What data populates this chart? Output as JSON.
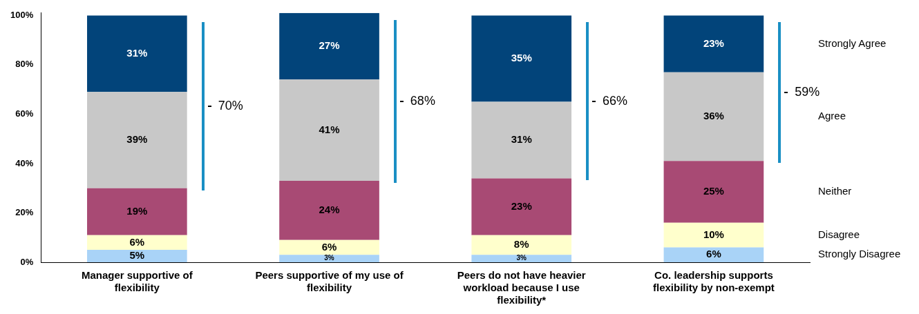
{
  "chart_data": {
    "type": "bar",
    "stacked": true,
    "legend": "right",
    "grid": false,
    "categories": [
      "Manager supportive of flexibility",
      "Peers supportive of my use of flexibility",
      "Peers do not have heavier workload because I use flexibility*",
      "Co. leadership supports flexibility by non-exempt"
    ],
    "series": [
      {
        "name": "Strongly Disagree",
        "color": "#a9d3f7",
        "values": [
          5,
          3,
          3,
          6
        ],
        "value_labels": [
          "5%",
          "3%",
          "3%",
          "6%"
        ]
      },
      {
        "name": "Disagree",
        "color": "#ffffcc",
        "values": [
          6,
          6,
          8,
          10
        ],
        "value_labels": [
          "6%",
          "6%",
          "8%",
          "10%"
        ]
      },
      {
        "name": "Neither",
        "color": "#a84a74",
        "values": [
          19,
          24,
          23,
          25
        ],
        "value_labels": [
          "19%",
          "24%",
          "23%",
          "25%"
        ]
      },
      {
        "name": "Agree",
        "color": "#c8c8c8",
        "values": [
          39,
          41,
          31,
          36
        ],
        "value_labels": [
          "39%",
          "41%",
          "31%",
          "36%"
        ]
      },
      {
        "name": "Strongly Agree",
        "color": "#02447a",
        "values": [
          31,
          27,
          35,
          23
        ],
        "value_labels": [
          "31%",
          "27%",
          "35%",
          "23%"
        ]
      }
    ],
    "ylim": [
      0,
      101
    ],
    "yticks": [
      {
        "value": 0,
        "label": "0%"
      },
      {
        "value": 20,
        "label": "20%"
      },
      {
        "value": 40,
        "label": "40%"
      },
      {
        "value": 60,
        "label": "60%"
      },
      {
        "value": 80,
        "label": "80%"
      },
      {
        "value": 100,
        "label": "100%"
      }
    ],
    "annotations": [
      "70%",
      "68%",
      "66%",
      "59%"
    ]
  }
}
